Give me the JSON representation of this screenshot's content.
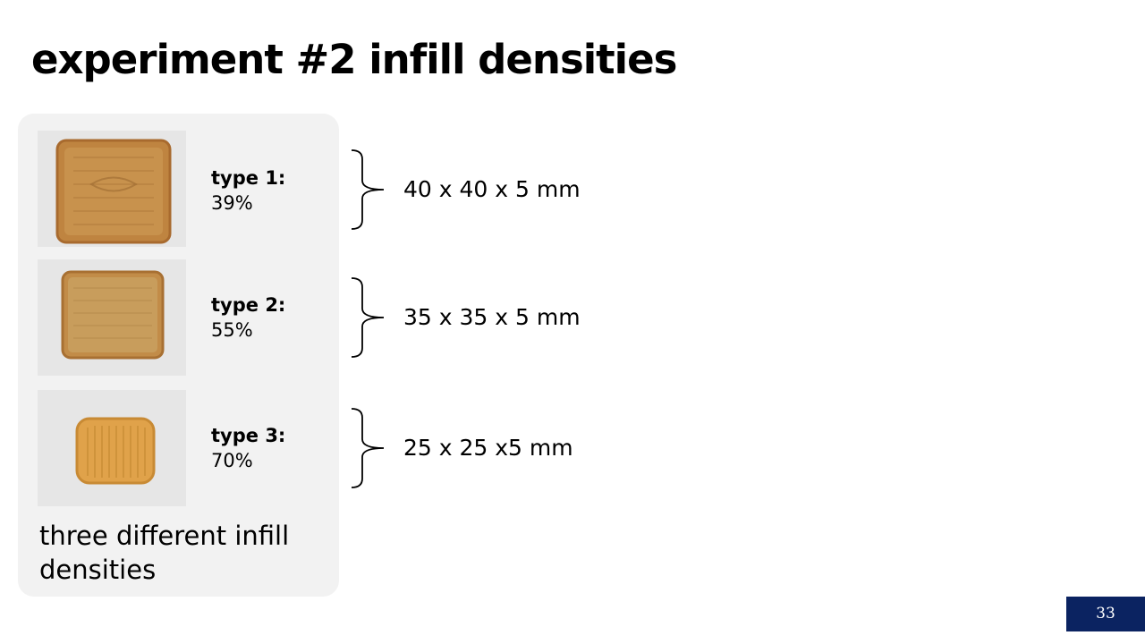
{
  "slide": {
    "title": "experiment #2 infill densities",
    "caption": "three different infill densities",
    "page_number": "33"
  },
  "samples": [
    {
      "name": "type 1:",
      "density": "39%",
      "dimensions": "40 x 40 x 5 mm",
      "color": "#c58a45"
    },
    {
      "name": "type 2:",
      "density": "55%",
      "dimensions": "35 x 35 x 5 mm",
      "color": "#c99a55"
    },
    {
      "name": "type 3:",
      "density": "70%",
      "dimensions": "25 x 25 x5 mm",
      "color": "#e2a74d"
    }
  ],
  "colors": {
    "panel_background": "#f2f2f2",
    "photo_background": "#e6e6e6",
    "page_number_background": "#0b2361"
  }
}
